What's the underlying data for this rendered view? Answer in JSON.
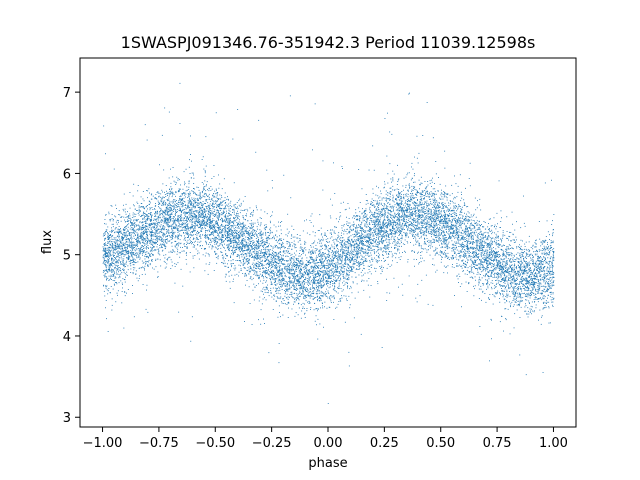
{
  "chart_data": {
    "type": "scatter",
    "title": "1SWASPJ091346.76-351942.3 Period 11039.12598s",
    "xlabel": "phase",
    "ylabel": "flux",
    "xlim": [
      -1.1,
      1.1
    ],
    "ylim": [
      2.88,
      7.42
    ],
    "xticks": [
      -1.0,
      -0.75,
      -0.5,
      -0.25,
      0.0,
      0.25,
      0.5,
      0.75,
      1.0
    ],
    "xtick_labels": [
      "−1.00",
      "−0.75",
      "−0.50",
      "−0.25",
      "0.00",
      "0.25",
      "0.50",
      "0.75",
      "1.00"
    ],
    "yticks": [
      3,
      4,
      5,
      6,
      7
    ],
    "ytick_labels": [
      "3",
      "4",
      "5",
      "6",
      "7"
    ],
    "grid": false,
    "legend": "none",
    "series": [
      {
        "marker_color": "#1f77b4",
        "x_range": [
          -1.0,
          1.0
        ],
        "trend": {
          "x": [
            -1.0,
            -0.9,
            -0.8,
            -0.7,
            -0.6,
            -0.5,
            -0.4,
            -0.3,
            -0.2,
            -0.1,
            0.0,
            0.1,
            0.2,
            0.3,
            0.4,
            0.5,
            0.6,
            0.7,
            0.8,
            0.9,
            1.0
          ],
          "y": [
            4.95,
            5.1,
            5.3,
            5.45,
            5.5,
            5.4,
            5.2,
            5.0,
            4.8,
            4.72,
            4.82,
            5.05,
            5.3,
            5.45,
            5.5,
            5.4,
            5.2,
            5.0,
            4.8,
            4.72,
            4.82
          ]
        },
        "scatter_sd": 0.22,
        "y_range": [
          3.05,
          7.2
        ]
      }
    ]
  }
}
